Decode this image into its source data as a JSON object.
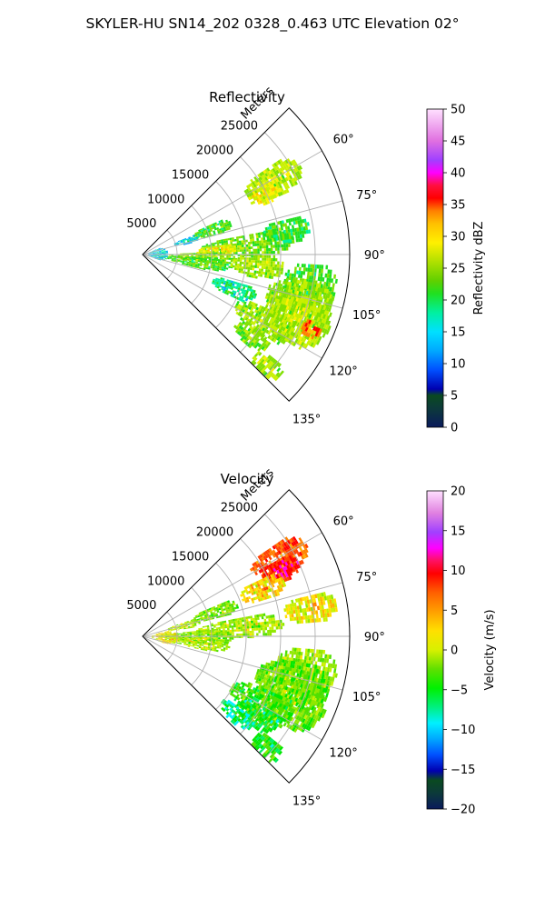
{
  "title": "SKYLER-HU  SN14_202  0328_0.463 UTC Elevation 02°",
  "chart_data": [
    {
      "type": "polar_sector",
      "title": "Reflectivity",
      "range_label": "Meters",
      "r_ticks": [
        "5000",
        "10000",
        "15000",
        "20000",
        "25000"
      ],
      "r_values": [
        5000,
        10000,
        15000,
        20000,
        25000
      ],
      "r_max": 30000,
      "theta_ticks": [
        "60°",
        "75°",
        "90°",
        "105°",
        "120°",
        "135°"
      ],
      "theta_values": [
        60,
        75,
        90,
        105,
        120,
        135
      ],
      "theta_range": [
        45,
        135
      ],
      "colorbar": {
        "label": "Reflectivity dBZ",
        "min": 0,
        "max": 50,
        "tick_labels": [
          "0",
          "5",
          "10",
          "15",
          "20",
          "25",
          "30",
          "35",
          "40",
          "45",
          "50"
        ],
        "tick_values": [
          0,
          5,
          10,
          15,
          20,
          25,
          30,
          35,
          40,
          45,
          50
        ]
      }
    },
    {
      "type": "polar_sector",
      "title": "Velocity",
      "range_label": "Meters",
      "r_ticks": [
        "5000",
        "10000",
        "15000",
        "20000",
        "25000"
      ],
      "r_values": [
        5000,
        10000,
        15000,
        20000,
        25000
      ],
      "r_max": 30000,
      "theta_ticks": [
        "60°",
        "75°",
        "90°",
        "105°",
        "120°",
        "135°"
      ],
      "theta_values": [
        60,
        75,
        90,
        105,
        120,
        135
      ],
      "theta_range": [
        45,
        135
      ],
      "colorbar": {
        "label": "Velocity (m/s)",
        "min": -20,
        "max": 20,
        "tick_labels": [
          "−20",
          "−15",
          "−10",
          "−5",
          "0",
          "5",
          "10",
          "15",
          "20"
        ],
        "tick_values": [
          -20,
          -15,
          -10,
          -5,
          0,
          5,
          10,
          15,
          20
        ]
      }
    }
  ]
}
